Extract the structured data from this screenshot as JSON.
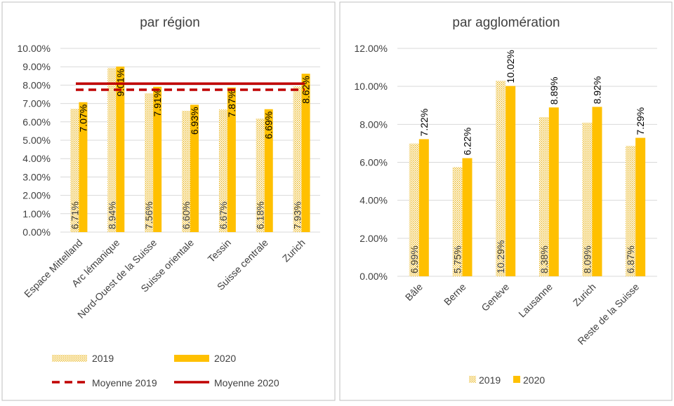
{
  "colors": {
    "bar_2020": "#FFC000",
    "bar_2019": "#FFC000",
    "avg_line": "#C00000",
    "grid": "#D9D9D9",
    "text": "#404040",
    "panel_border": "#BFBFBF"
  },
  "chart_data": [
    {
      "type": "bar",
      "title": "par région",
      "categories": [
        "Espace Mittelland",
        "Arc lémanique",
        "Nord-Ouest de la Suisse",
        "Suisse orientale",
        "Tessin",
        "Suisse centrale",
        "Zurich"
      ],
      "series": [
        {
          "name": "2019",
          "values": [
            6.71,
            8.94,
            7.56,
            6.6,
            6.67,
            6.18,
            7.93
          ],
          "labels": [
            "6.71%",
            "8.94%",
            "7.56%",
            "6.60%",
            "6.67%",
            "6.18%",
            "7.93%"
          ],
          "pattern": "dotted"
        },
        {
          "name": "2020",
          "values": [
            7.07,
            9.01,
            7.91,
            6.93,
            7.87,
            6.69,
            8.62
          ],
          "labels": [
            "7.07%",
            "9.01%",
            "7.91%",
            "6.93%",
            "7.87%",
            "6.69%",
            "8.62%"
          ],
          "pattern": "solid"
        }
      ],
      "averages": [
        {
          "name": "Moyenne 2019",
          "value": 7.75,
          "style": "dashed"
        },
        {
          "name": "Moyenne 2020",
          "value": 8.08,
          "style": "solid"
        }
      ],
      "ylim": [
        0,
        10
      ],
      "yticks": [
        0,
        1,
        2,
        3,
        4,
        5,
        6,
        7,
        8,
        9,
        10
      ],
      "ytick_labels": [
        "0.00%",
        "1.00%",
        "2.00%",
        "3.00%",
        "4.00%",
        "5.00%",
        "6.00%",
        "7.00%",
        "8.00%",
        "9.00%",
        "10.00%"
      ],
      "xlabel": "",
      "ylabel": "",
      "grid": true,
      "legend_position": "bottom"
    },
    {
      "type": "bar",
      "title": "par agglomération",
      "categories": [
        "Bâle",
        "Berne",
        "Genève",
        "Lausanne",
        "Zurich",
        "Reste de la Suisse"
      ],
      "series": [
        {
          "name": "2019",
          "values": [
            6.99,
            5.75,
            10.29,
            8.38,
            8.09,
            6.87
          ],
          "labels": [
            "6.99%",
            "5.75%",
            "10.29%",
            "8.38%",
            "8.09%",
            "6.87%"
          ],
          "pattern": "dotted"
        },
        {
          "name": "2020",
          "values": [
            7.22,
            6.22,
            10.02,
            8.89,
            8.92,
            7.29
          ],
          "labels": [
            "7.22%",
            "6.22%",
            "10.02%",
            "8.89%",
            "8.92%",
            "7.29%"
          ],
          "pattern": "solid"
        }
      ],
      "ylim": [
        0,
        12
      ],
      "yticks": [
        0,
        2,
        4,
        6,
        8,
        10,
        12
      ],
      "ytick_labels": [
        "0.00%",
        "2.00%",
        "4.00%",
        "6.00%",
        "8.00%",
        "10.00%",
        "12.00%"
      ],
      "xlabel": "",
      "ylabel": "",
      "grid": true,
      "legend_position": "bottom"
    }
  ]
}
